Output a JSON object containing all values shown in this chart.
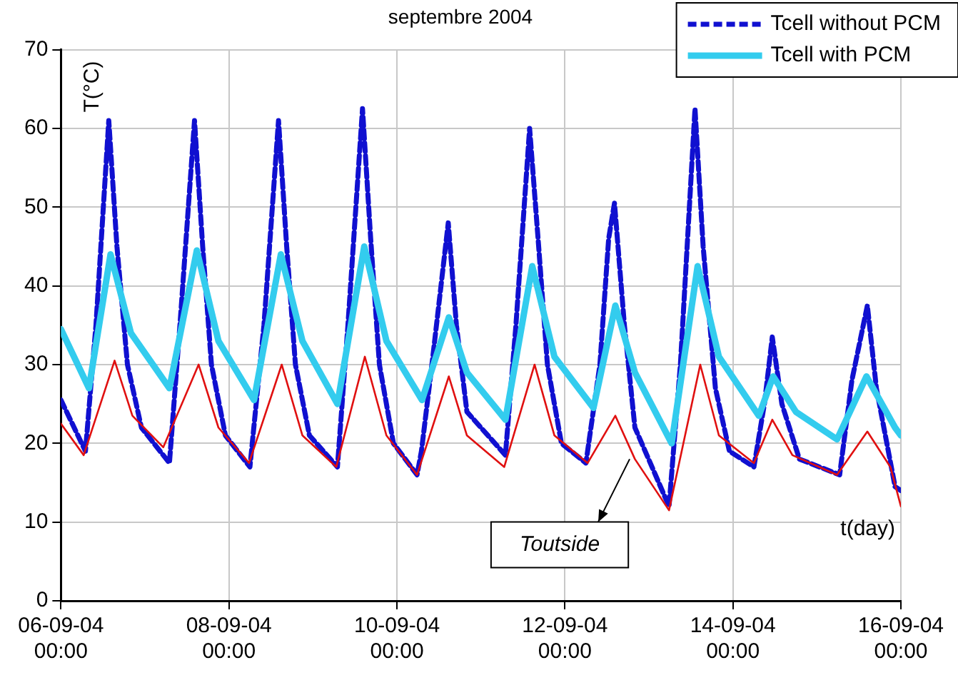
{
  "chart_data": {
    "type": "line",
    "title": "septembre 2004",
    "xlabel": "t(day)",
    "ylabel": "T(°C)",
    "xlim": [
      "2004-09-06T00:00",
      "2004-09-16T00:00"
    ],
    "xticks": [
      {
        "value": "2004-09-06T00:00",
        "label": "06-09-04 00:00"
      },
      {
        "value": "2004-09-08T00:00",
        "label": "08-09-04 00:00"
      },
      {
        "value": "2004-09-10T00:00",
        "label": "10-09-04 00:00"
      },
      {
        "value": "2004-09-12T00:00",
        "label": "12-09-04 00:00"
      },
      {
        "value": "2004-09-14T00:00",
        "label": "14-09-04 00:00"
      },
      {
        "value": "2004-09-16T00:00",
        "label": "16-09-04 00:00"
      }
    ],
    "ylim": [
      0,
      70
    ],
    "yticks": [
      0,
      10,
      20,
      30,
      40,
      50,
      60,
      70
    ],
    "grid": true,
    "legend": "top right",
    "marker": "none",
    "annotations": [
      {
        "text": "Toutside",
        "x": "2004-09-12T18:30",
        "y": 18
      }
    ],
    "series": [
      {
        "name": "Tcell without PCM",
        "color": "#1010d0",
        "line_style": "dashed",
        "x": [
          "2004-09-06T00:00",
          "2004-09-06T07:00",
          "2004-09-06T10:00",
          "2004-09-06T13:40",
          "2004-09-06T16:00",
          "2004-09-06T19:00",
          "2004-09-06T23:00",
          "2004-09-07T07:00",
          "2004-09-07T10:00",
          "2004-09-07T14:10",
          "2004-09-07T16:30",
          "2004-09-07T19:00",
          "2004-09-07T23:00",
          "2004-09-08T06:00",
          "2004-09-08T10:00",
          "2004-09-08T14:10",
          "2004-09-08T16:30",
          "2004-09-08T19:00",
          "2004-09-08T23:00",
          "2004-09-09T07:00",
          "2004-09-09T10:00",
          "2004-09-09T14:10",
          "2004-09-09T16:30",
          "2004-09-09T19:00",
          "2004-09-09T23:00",
          "2004-09-10T05:45",
          "2004-09-10T07:00",
          "2004-09-10T10:00",
          "2004-09-10T14:40",
          "2004-09-10T17:00",
          "2004-09-10T20:00",
          "2004-09-11T07:00",
          "2004-09-11T10:00",
          "2004-09-11T13:55",
          "2004-09-11T16:30",
          "2004-09-11T19:00",
          "2004-09-11T23:00",
          "2004-09-12T06:00",
          "2004-09-12T10:00",
          "2004-09-12T12:30",
          "2004-09-12T14:10",
          "2004-09-12T17:00",
          "2004-09-12T20:00",
          "2004-09-13T05:45",
          "2004-09-13T09:00",
          "2004-09-13T13:10",
          "2004-09-13T15:30",
          "2004-09-13T19:00",
          "2004-09-13T23:00",
          "2004-09-14T06:00",
          "2004-09-14T09:00",
          "2004-09-14T11:15",
          "2004-09-14T14:00",
          "2004-09-14T19:00",
          "2004-09-15T06:30",
          "2004-09-15T10:00",
          "2004-09-15T14:25",
          "2004-09-15T17:00",
          "2004-09-15T22:20",
          "2004-09-16T00:00"
        ],
        "values": [
          25.5,
          19,
          35,
          61,
          45,
          30,
          22,
          17.5,
          35,
          61,
          45,
          30,
          21,
          17,
          35,
          61,
          45,
          30,
          21,
          17,
          35,
          62.5,
          46,
          30,
          20,
          16,
          19,
          30,
          48,
          35,
          24,
          18.5,
          35,
          60,
          45,
          30,
          20,
          17.5,
          30,
          46,
          50.5,
          35,
          22,
          12,
          30,
          62.5,
          45,
          27,
          19,
          17,
          25,
          33.5,
          25,
          18,
          16,
          28,
          37.5,
          27,
          14.5,
          14
        ]
      },
      {
        "name": "Tcell with PCM",
        "color": "#33ccee",
        "line_style": "solid",
        "x": [
          "2004-09-06T00:00",
          "2004-09-06T08:00",
          "2004-09-06T14:10",
          "2004-09-06T20:00",
          "2004-09-07T07:00",
          "2004-09-07T14:50",
          "2004-09-07T21:00",
          "2004-09-08T07:10",
          "2004-09-08T14:50",
          "2004-09-08T21:00",
          "2004-09-09T07:00",
          "2004-09-09T14:40",
          "2004-09-09T21:00",
          "2004-09-10T07:10",
          "2004-09-10T14:50",
          "2004-09-10T20:00",
          "2004-09-11T07:00",
          "2004-09-11T14:40",
          "2004-09-11T21:00",
          "2004-09-12T08:10",
          "2004-09-12T14:25",
          "2004-09-12T20:00",
          "2004-09-13T06:30",
          "2004-09-13T13:55",
          "2004-09-13T20:00",
          "2004-09-14T07:25",
          "2004-09-14T11:30",
          "2004-09-14T18:00",
          "2004-09-15T05:45",
          "2004-09-15T14:10",
          "2004-09-15T22:20",
          "2004-09-16T00:00"
        ],
        "values": [
          34.5,
          27,
          44,
          34,
          27,
          44.5,
          33,
          25.5,
          44,
          33,
          25,
          45,
          33,
          25.5,
          36,
          29,
          23,
          42.5,
          31,
          24.5,
          37.5,
          29,
          20,
          42.5,
          31,
          23.5,
          28.5,
          24,
          20.5,
          28.5,
          22,
          21
        ]
      },
      {
        "color": "#e01010",
        "line_style": "solid",
        "x": [
          "2004-09-06T00:00",
          "2004-09-06T06:30",
          "2004-09-06T15:20",
          "2004-09-06T20:25",
          "2004-09-07T05:15",
          "2004-09-07T15:20",
          "2004-09-07T21:00",
          "2004-09-08T05:45",
          "2004-09-08T15:05",
          "2004-09-08T21:00",
          "2004-09-09T06:40",
          "2004-09-09T14:50",
          "2004-09-09T21:00",
          "2004-09-10T05:45",
          "2004-09-10T14:50",
          "2004-09-10T20:00",
          "2004-09-11T06:40",
          "2004-09-11T15:20",
          "2004-09-11T21:00",
          "2004-09-12T06:30",
          "2004-09-12T14:25",
          "2004-09-12T20:00",
          "2004-09-13T05:45",
          "2004-09-13T14:40",
          "2004-09-13T20:00",
          "2004-09-14T06:00",
          "2004-09-14T11:15",
          "2004-09-14T17:00",
          "2004-09-15T05:45",
          "2004-09-15T14:25",
          "2004-09-15T21:00",
          "2004-09-16T00:00"
        ],
        "values": [
          22.5,
          18.5,
          30.5,
          23.5,
          19.5,
          30,
          22,
          17.5,
          30,
          21,
          17,
          31,
          21,
          16,
          28.5,
          21,
          17,
          30,
          21,
          17.5,
          23.5,
          18,
          11.5,
          30,
          21,
          17.5,
          23,
          18.5,
          16,
          21.5,
          17,
          12
        ]
      }
    ]
  }
}
